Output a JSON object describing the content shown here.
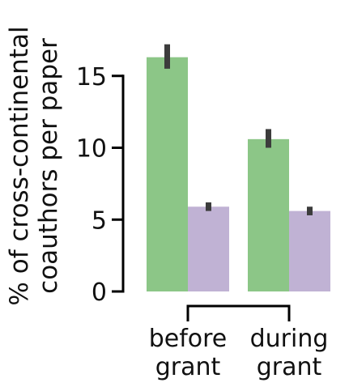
{
  "chart_data": {
    "type": "bar",
    "title": "",
    "ylabel": [
      "% of cross-continental",
      "coauthors per paper"
    ],
    "xlabel": "",
    "ylim": [
      0,
      18
    ],
    "yticks": [
      0,
      5,
      10,
      15
    ],
    "ytick_labels": [
      "0",
      "5",
      "10",
      "15"
    ],
    "categories": [
      [
        "before",
        "grant"
      ],
      [
        "during",
        "grant"
      ]
    ],
    "series": [
      {
        "color": "#8cc687",
        "values": [
          16.3,
          10.6
        ],
        "err_low": [
          15.5,
          10.0
        ],
        "err_high": [
          17.2,
          11.3
        ]
      },
      {
        "color": "#c0b2d4",
        "values": [
          5.9,
          5.6
        ],
        "err_low": [
          5.6,
          5.3
        ],
        "err_high": [
          6.2,
          5.9
        ]
      }
    ],
    "grid": false,
    "legend": "none"
  }
}
